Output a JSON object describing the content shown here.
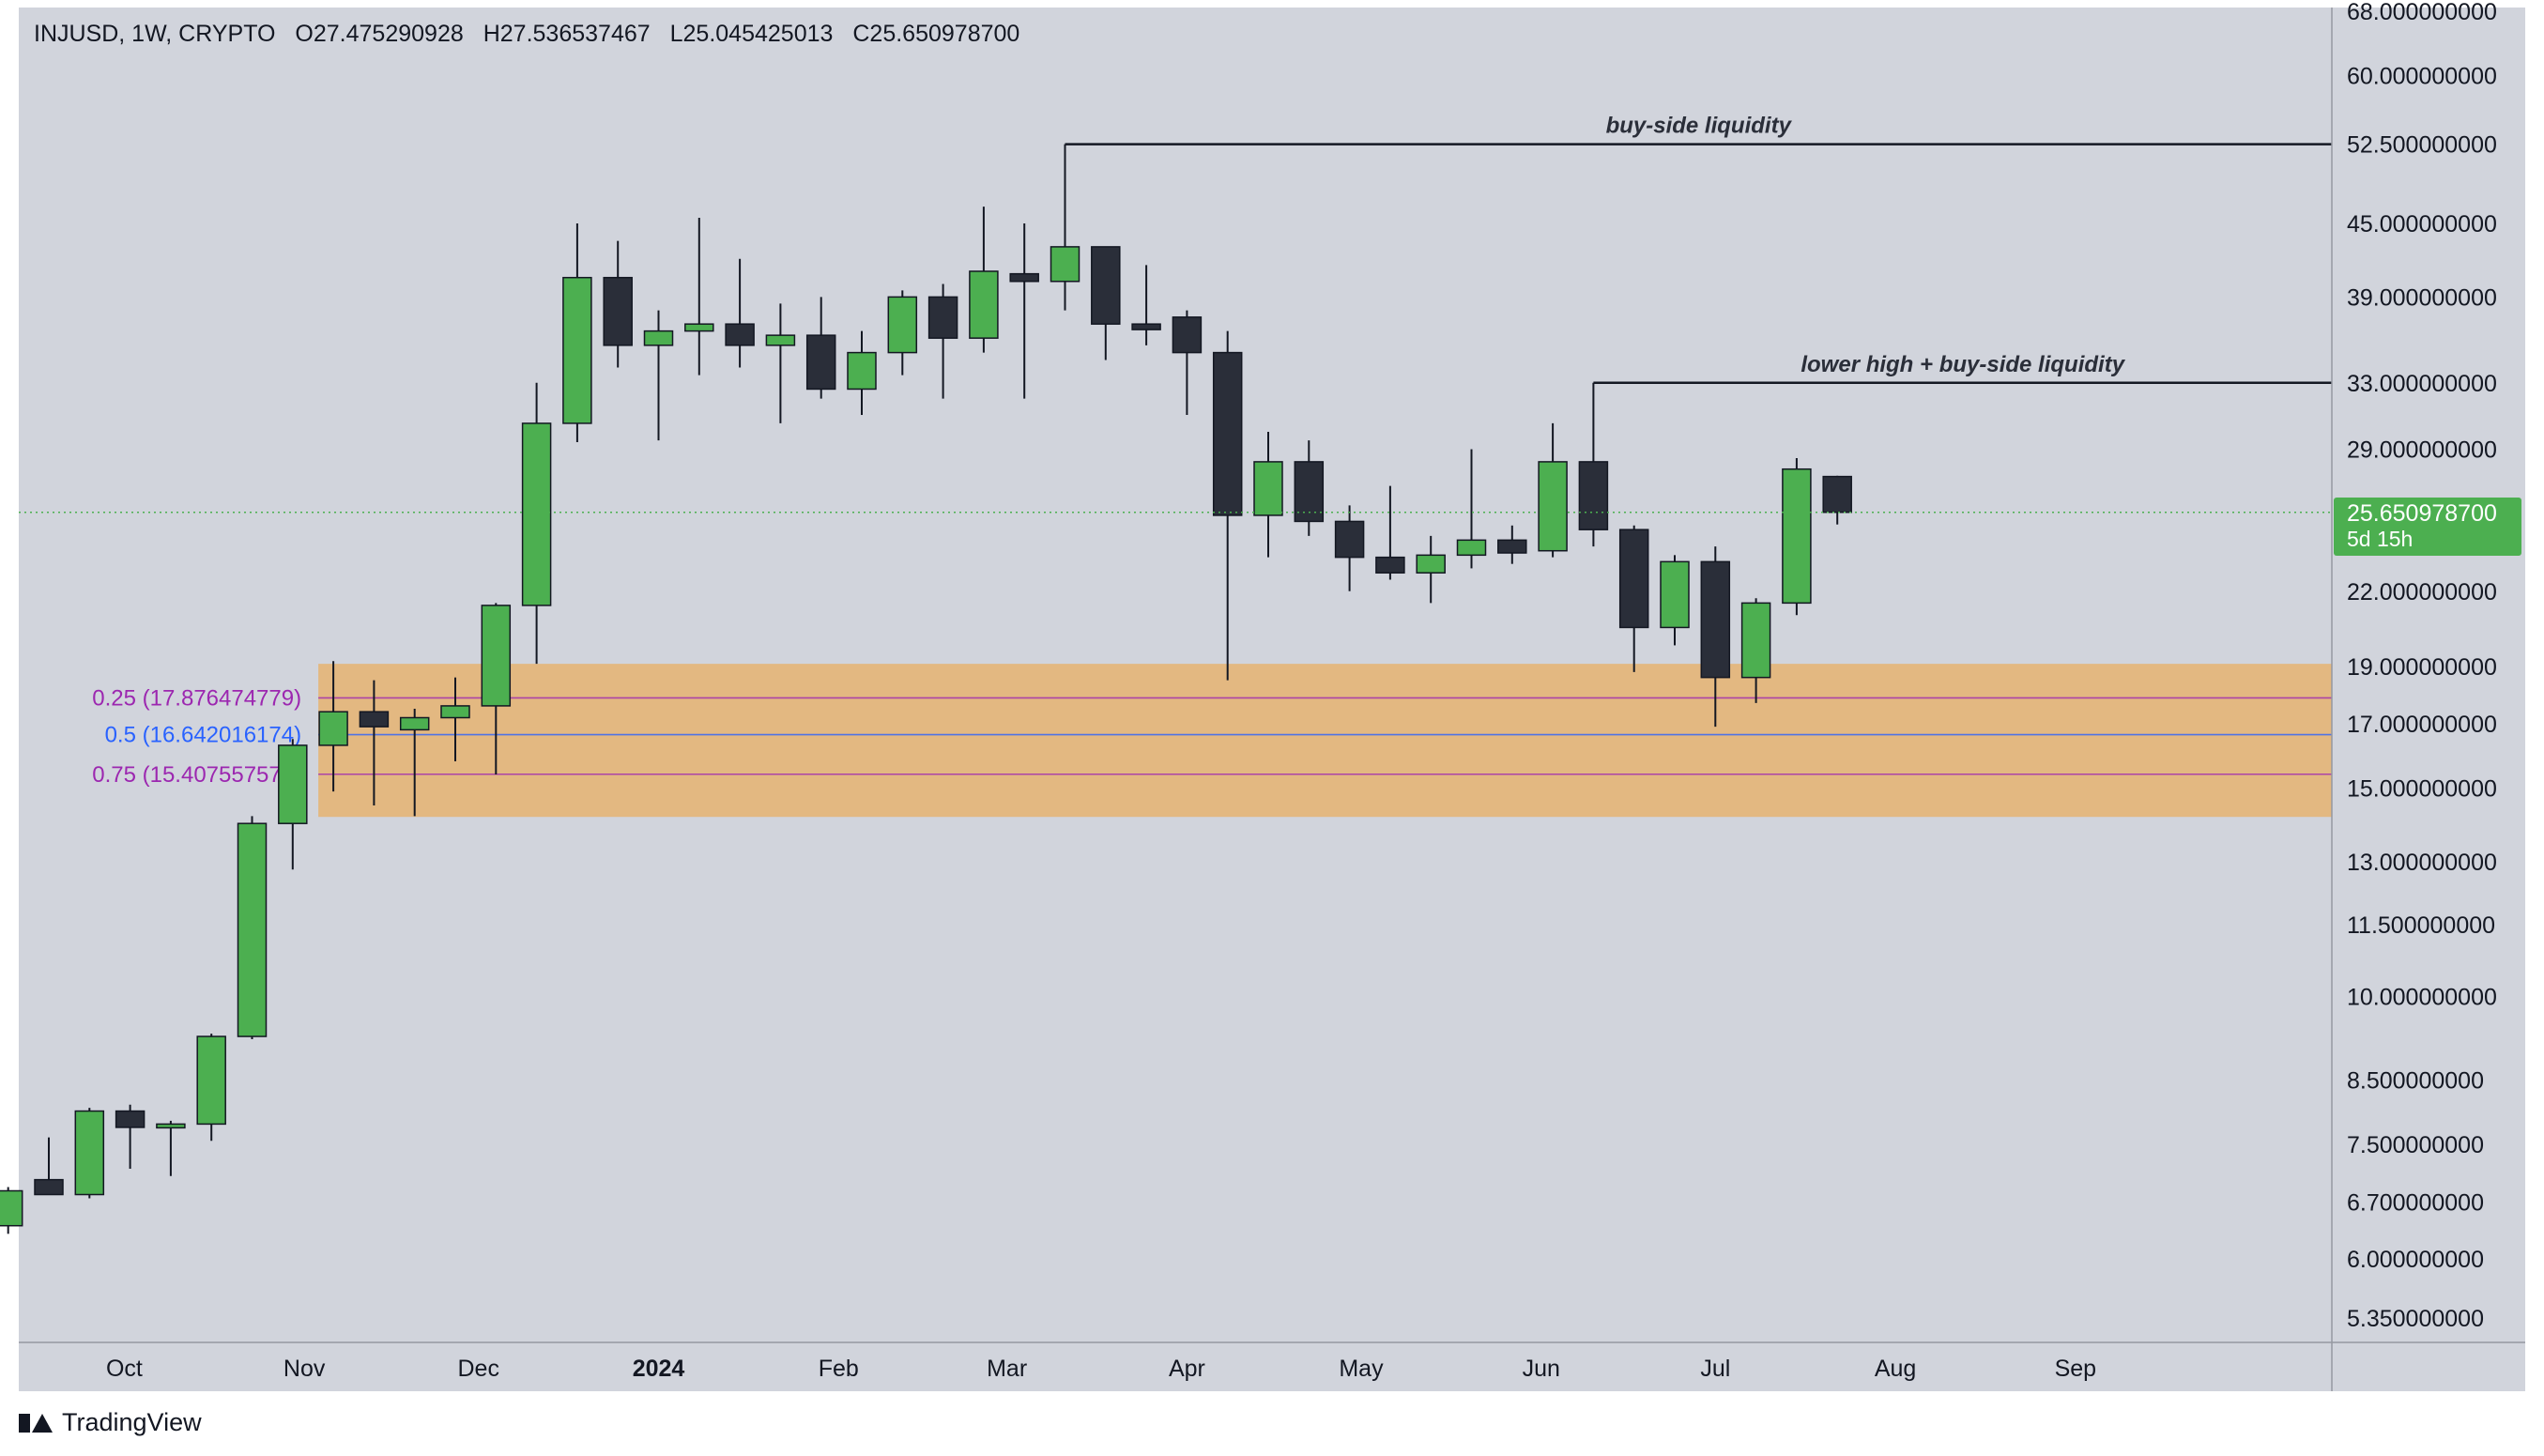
{
  "legend": {
    "symbol": "INJUSD, 1W, CRYPTO",
    "open": "O27.475290928",
    "high": "H27.536537467",
    "low": "L25.045425013",
    "close": "C25.650978700"
  },
  "price_tag": {
    "price": "25.650978700",
    "countdown": "5d 15h"
  },
  "brand": {
    "name": "TradingView",
    "icon": "tradingview-logo-icon"
  },
  "colors": {
    "background": "#d1d4dc",
    "bull": "#4caf50",
    "bear": "#2a2e39",
    "zone": "#e3b881",
    "fib_025": "#9c27b0",
    "fib_05": "#2962ff",
    "fib_075": "#9c27b0",
    "level_line": "#131722"
  },
  "chart_data": {
    "type": "candlestick",
    "scale": "log",
    "ylim": [
      5.1,
      68.5
    ],
    "y_ticks": [
      "68.000000000",
      "60.000000000",
      "52.500000000",
      "45.000000000",
      "39.000000000",
      "33.000000000",
      "29.000000000",
      "25.650978700",
      "22.000000000",
      "19.000000000",
      "17.000000000",
      "15.000000000",
      "13.000000000",
      "11.500000000",
      "10.000000000",
      "8.500000000",
      "7.500000000",
      "6.700000000",
      "6.000000000",
      "5.350000000"
    ],
    "y_tick_values": [
      68,
      60,
      52.5,
      45,
      39,
      33,
      29,
      25.6509787,
      22,
      19,
      17,
      15,
      13,
      11.5,
      10,
      8.5,
      7.5,
      6.7,
      6,
      5.35
    ],
    "x_ticks": [
      {
        "label": "Oct",
        "date": "2023-10-01"
      },
      {
        "label": "Nov",
        "date": "2023-11-01"
      },
      {
        "label": "Dec",
        "date": "2023-12-01"
      },
      {
        "label": "2024",
        "date": "2024-01-01",
        "bold": true
      },
      {
        "label": "Feb",
        "date": "2024-02-01"
      },
      {
        "label": "Mar",
        "date": "2024-03-01"
      },
      {
        "label": "Apr",
        "date": "2024-04-01"
      },
      {
        "label": "May",
        "date": "2024-05-01"
      },
      {
        "label": "Jun",
        "date": "2024-06-01"
      },
      {
        "label": "Jul",
        "date": "2024-07-01"
      },
      {
        "label": "Aug",
        "date": "2024-08-01"
      },
      {
        "label": "Sep",
        "date": "2024-09-01"
      }
    ],
    "candles": [
      {
        "t": "2023-09-11",
        "o": 6.4,
        "h": 6.9,
        "l": 6.3,
        "c": 6.85
      },
      {
        "t": "2023-09-18",
        "o": 7.0,
        "h": 7.6,
        "l": 6.85,
        "c": 6.8
      },
      {
        "t": "2023-09-25",
        "o": 6.8,
        "h": 8.05,
        "l": 6.75,
        "c": 8.0
      },
      {
        "t": "2023-10-02",
        "o": 8.0,
        "h": 8.1,
        "l": 7.15,
        "c": 7.75
      },
      {
        "t": "2023-10-09",
        "o": 7.75,
        "h": 7.85,
        "l": 7.05,
        "c": 7.8
      },
      {
        "t": "2023-10-16",
        "o": 7.8,
        "h": 9.3,
        "l": 7.55,
        "c": 9.25
      },
      {
        "t": "2023-10-23",
        "o": 9.25,
        "h": 14.2,
        "l": 9.2,
        "c": 14.0
      },
      {
        "t": "2023-10-30",
        "o": 14.0,
        "h": 16.5,
        "l": 12.8,
        "c": 16.3
      },
      {
        "t": "2023-11-06",
        "o": 16.3,
        "h": 19.2,
        "l": 14.9,
        "c": 17.4
      },
      {
        "t": "2023-11-13",
        "o": 17.4,
        "h": 18.5,
        "l": 14.5,
        "c": 16.9
      },
      {
        "t": "2023-11-20",
        "o": 16.8,
        "h": 17.5,
        "l": 14.2,
        "c": 17.2
      },
      {
        "t": "2023-11-27",
        "o": 17.2,
        "h": 18.6,
        "l": 15.8,
        "c": 17.6
      },
      {
        "t": "2023-12-04",
        "o": 17.6,
        "h": 21.5,
        "l": 15.4,
        "c": 21.4
      },
      {
        "t": "2023-12-11",
        "o": 21.4,
        "h": 33.0,
        "l": 19.1,
        "c": 30.5
      },
      {
        "t": "2023-12-18",
        "o": 30.5,
        "h": 45.0,
        "l": 29.4,
        "c": 40.5
      },
      {
        "t": "2023-12-25",
        "o": 40.5,
        "h": 43.5,
        "l": 34.0,
        "c": 35.5
      },
      {
        "t": "2024-01-01",
        "o": 35.5,
        "h": 38.0,
        "l": 29.5,
        "c": 36.5
      },
      {
        "t": "2024-01-08",
        "o": 36.5,
        "h": 45.5,
        "l": 33.5,
        "c": 37.0
      },
      {
        "t": "2024-01-15",
        "o": 37.0,
        "h": 42.0,
        "l": 34.0,
        "c": 35.5
      },
      {
        "t": "2024-01-22",
        "o": 35.5,
        "h": 38.5,
        "l": 30.5,
        "c": 36.2
      },
      {
        "t": "2024-01-29",
        "o": 36.2,
        "h": 39.0,
        "l": 32.0,
        "c": 32.6
      },
      {
        "t": "2024-02-05",
        "o": 32.6,
        "h": 36.5,
        "l": 31.0,
        "c": 35.0
      },
      {
        "t": "2024-02-12",
        "o": 35.0,
        "h": 39.5,
        "l": 33.5,
        "c": 39.0
      },
      {
        "t": "2024-02-19",
        "o": 39.0,
        "h": 40.0,
        "l": 32.0,
        "c": 36.0
      },
      {
        "t": "2024-02-26",
        "o": 36.0,
        "h": 46.5,
        "l": 35.0,
        "c": 41.0
      },
      {
        "t": "2024-03-04",
        "o": 40.8,
        "h": 45.0,
        "l": 32.0,
        "c": 40.2
      },
      {
        "t": "2024-03-11",
        "o": 40.2,
        "h": 52.5,
        "l": 38.0,
        "c": 43.0
      },
      {
        "t": "2024-03-18",
        "o": 43.0,
        "h": 43.0,
        "l": 34.5,
        "c": 37.0
      },
      {
        "t": "2024-03-25",
        "o": 37.0,
        "h": 41.5,
        "l": 35.5,
        "c": 36.6
      },
      {
        "t": "2024-04-01",
        "o": 37.5,
        "h": 38.0,
        "l": 31.0,
        "c": 35.0
      },
      {
        "t": "2024-04-08",
        "o": 35.0,
        "h": 36.5,
        "l": 18.5,
        "c": 25.5
      },
      {
        "t": "2024-04-15",
        "o": 25.5,
        "h": 30.0,
        "l": 23.5,
        "c": 28.3
      },
      {
        "t": "2024-04-22",
        "o": 28.3,
        "h": 29.5,
        "l": 24.5,
        "c": 25.2
      },
      {
        "t": "2024-04-29",
        "o": 25.2,
        "h": 26.0,
        "l": 22.0,
        "c": 23.5
      },
      {
        "t": "2024-05-06",
        "o": 23.5,
        "h": 27.0,
        "l": 22.5,
        "c": 22.8
      },
      {
        "t": "2024-05-13",
        "o": 22.8,
        "h": 24.5,
        "l": 21.5,
        "c": 23.6
      },
      {
        "t": "2024-05-20",
        "o": 23.6,
        "h": 29.0,
        "l": 23.0,
        "c": 24.3
      },
      {
        "t": "2024-05-27",
        "o": 24.3,
        "h": 25.0,
        "l": 23.2,
        "c": 23.7
      },
      {
        "t": "2024-06-03",
        "o": 23.8,
        "h": 30.5,
        "l": 23.5,
        "c": 28.3
      },
      {
        "t": "2024-06-10",
        "o": 28.3,
        "h": 33.0,
        "l": 24.0,
        "c": 24.8
      },
      {
        "t": "2024-06-17",
        "o": 24.8,
        "h": 25.0,
        "l": 18.8,
        "c": 20.5
      },
      {
        "t": "2024-06-24",
        "o": 20.5,
        "h": 23.6,
        "l": 19.8,
        "c": 23.3
      },
      {
        "t": "2024-07-01",
        "o": 23.3,
        "h": 24.0,
        "l": 16.9,
        "c": 18.6
      },
      {
        "t": "2024-07-08",
        "o": 18.6,
        "h": 21.7,
        "l": 17.7,
        "c": 21.5
      },
      {
        "t": "2024-07-15",
        "o": 21.5,
        "h": 28.5,
        "l": 21.0,
        "c": 27.9
      },
      {
        "t": "2024-07-22",
        "o": 27.5,
        "h": 27.54,
        "l": 25.05,
        "c": 25.65
      }
    ],
    "zone": {
      "from_date": "2023-11-06",
      "low": 14.18,
      "high": 19.1
    },
    "fib_levels": [
      {
        "label": "0.25 (17.876474779)",
        "value": 17.876474779,
        "color": "#9c27b0"
      },
      {
        "label": "0.5 (16.642016174)",
        "value": 16.642016174,
        "color": "#2962ff"
      },
      {
        "label": "0.75 (15.407557570)",
        "value": 15.40755757,
        "color": "#9c27b0"
      }
    ],
    "levels": [
      {
        "label": "buy-side liquidity",
        "value": 52.5,
        "from_date": "2024-03-11"
      },
      {
        "label": "lower high + buy-side liquidity",
        "value": 33.0,
        "from_date": "2024-06-10"
      }
    ],
    "last_price": 25.6509787
  }
}
